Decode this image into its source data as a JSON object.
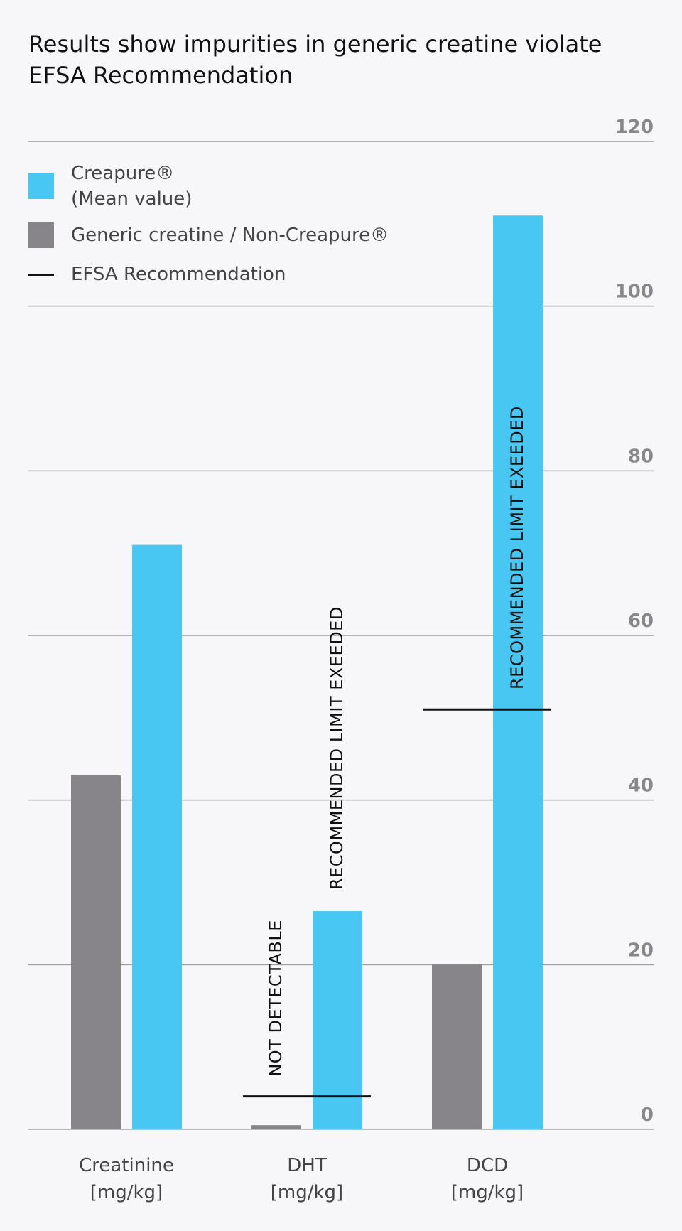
{
  "chart_data": {
    "type": "bar",
    "title": "Results show impurities in generic creatine violate EFSA Recommendation",
    "categories": [
      [
        "Creatinine",
        "[mg/kg]"
      ],
      [
        "DHT",
        "[mg/kg]"
      ],
      [
        "DCD",
        "[mg/kg]"
      ]
    ],
    "ylim": [
      0,
      120
    ],
    "yticks": [
      0,
      20,
      40,
      60,
      80,
      100,
      120
    ],
    "grid": true,
    "legend_position": "top-left",
    "series": [
      {
        "name": "Generic creatine / Non-Creapure®",
        "color": "#878589",
        "values": [
          43,
          0.5,
          20
        ]
      },
      {
        "name": "Creapure®\n(Mean value)",
        "color": "#48c7f2",
        "values": [
          71,
          26.5,
          111
        ]
      }
    ],
    "reference": {
      "name": "EFSA Recommendation",
      "color": "#111111",
      "values": [
        null,
        4,
        51
      ]
    },
    "annotations": [
      {
        "category": 1,
        "series": 0,
        "text": "NOT DETECTABLE"
      },
      {
        "category": 1,
        "series": 1,
        "text": "RECOMMENDED LIMIT EXEEDED"
      },
      {
        "category": 2,
        "series": 1,
        "text": "RECOMMENDED LIMIT EXEEDED"
      }
    ]
  }
}
